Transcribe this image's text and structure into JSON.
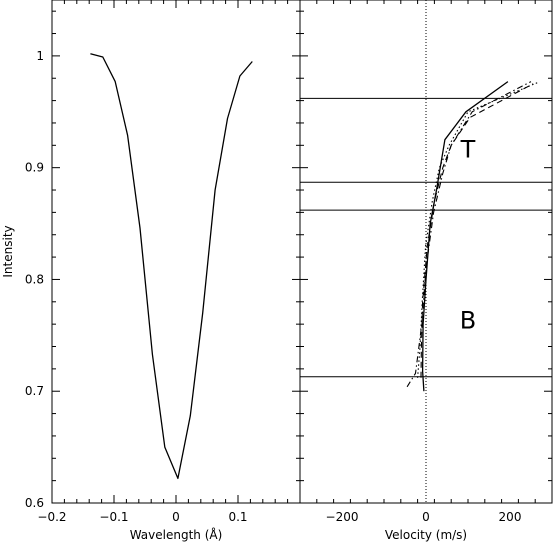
{
  "chart_data": [
    {
      "type": "line",
      "xlabel": "Wavelength (Å)",
      "ylabel": "Intensity",
      "xlim": [
        -0.2,
        0.2
      ],
      "ylim": [
        0.6,
        1.05
      ],
      "xticks": [
        -0.2,
        -0.1,
        0.0,
        0.1
      ],
      "xtick_labels": [
        "−0.2",
        "−0.1",
        "0",
        "0.1"
      ],
      "yticks": [
        0.6,
        0.7,
        0.8,
        0.9,
        1.0
      ],
      "ytick_labels": [
        "0.6",
        "0.7",
        "0.8",
        "0.9",
        "1"
      ],
      "grid": false,
      "series": [
        {
          "style": "solid",
          "x": [
            -0.138,
            -0.118,
            -0.098,
            -0.078,
            -0.058,
            -0.038,
            -0.018,
            0.003,
            0.023,
            0.043,
            0.063,
            0.083,
            0.103,
            0.123
          ],
          "y": [
            1.002,
            0.999,
            0.977,
            0.929,
            0.846,
            0.733,
            0.65,
            0.622,
            0.678,
            0.77,
            0.88,
            0.944,
            0.982,
            0.995
          ]
        }
      ]
    },
    {
      "type": "line",
      "xlabel": "Velocity (m/s)",
      "ylabel": "",
      "xlim": [
        -300,
        300
      ],
      "ylim": [
        0.6,
        1.05
      ],
      "xticks": [
        -200,
        0,
        200
      ],
      "xtick_labels": [
        "−200",
        "0",
        "200"
      ],
      "grid": false,
      "series": [
        {
          "style": "solid",
          "x": [
            -5,
            -8,
            -7,
            0,
            10,
            25,
            45,
            95,
            195
          ],
          "y": [
            0.7,
            0.718,
            0.76,
            0.8,
            0.85,
            0.88,
            0.925,
            0.95,
            0.977
          ]
        },
        {
          "style": "dashed",
          "x": [
            -12,
            -11,
            -8,
            3,
            20,
            40,
            60,
            105,
            255
          ],
          "y": [
            0.712,
            0.74,
            0.78,
            0.83,
            0.87,
            0.9,
            0.92,
            0.945,
            0.975
          ]
        },
        {
          "style": "dotted",
          "x": [
            -20,
            -14,
            -9,
            -1,
            15,
            32,
            55,
            100,
            265
          ],
          "y": [
            0.712,
            0.74,
            0.78,
            0.83,
            0.87,
            0.9,
            0.92,
            0.95,
            0.976
          ]
        },
        {
          "style": "dashdot",
          "x": [
            -45,
            -25,
            -10,
            0,
            18,
            40,
            60,
            110,
            250
          ],
          "y": [
            0.704,
            0.716,
            0.76,
            0.81,
            0.86,
            0.895,
            0.92,
            0.95,
            0.977
          ]
        }
      ],
      "reference_lines": {
        "horizontal": [
          0.962,
          0.887,
          0.862,
          0.713
        ],
        "vertical_dotted": [
          0
        ]
      },
      "annotations": [
        {
          "text": "T",
          "x": 100,
          "y": 0.918
        },
        {
          "text": "B",
          "x": 100,
          "y": 0.765
        }
      ]
    }
  ]
}
